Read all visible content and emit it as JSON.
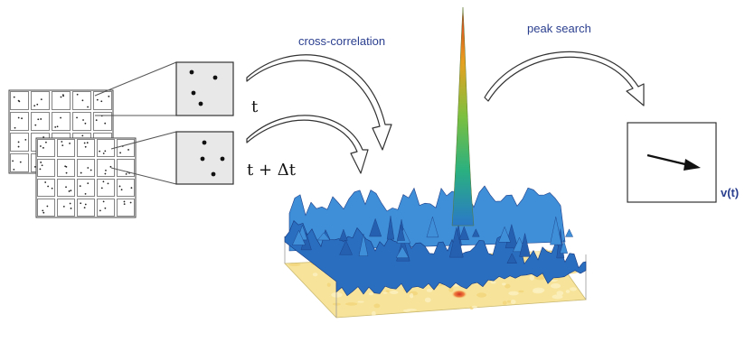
{
  "labels": {
    "cross_correlation": "cross-correlation",
    "peak_search": "peak search",
    "t": "t",
    "t_dt": "t + Δt",
    "velocity": "v(t)"
  },
  "colors": {
    "label_blue": "#2b3f8f",
    "surface_blue": "#2a78c8",
    "surface_dark": "#1d3f8a",
    "peak_red": "#d23020",
    "floor_yellow": "#f7e49a",
    "window_fill": "#e8e8e8"
  },
  "icons": [
    "curved-arrow-icon",
    "velocity-arrow-icon"
  ]
}
